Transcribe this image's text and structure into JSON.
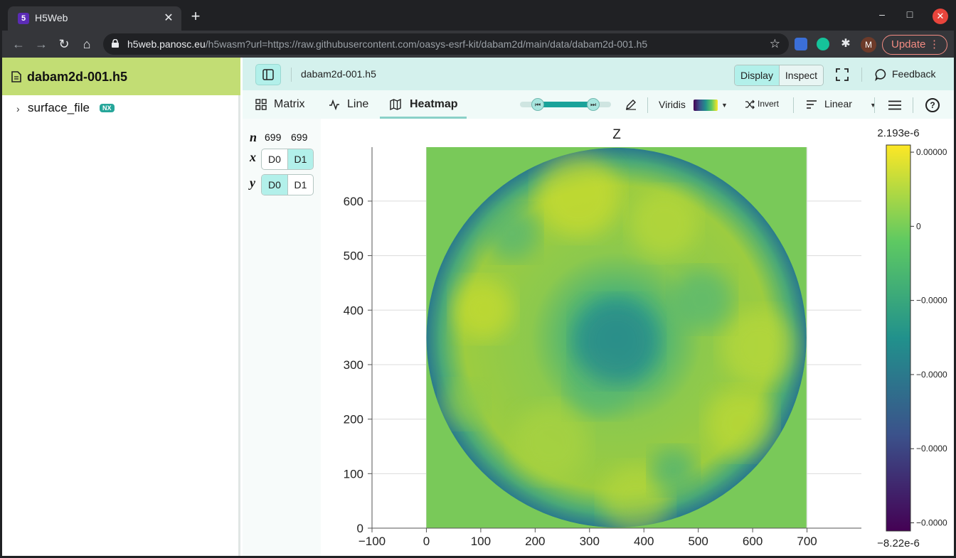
{
  "browser": {
    "tab_title": "H5Web",
    "tab_favicon": "5",
    "url_host": "h5web.panosc.eu",
    "url_path": "/h5wasm?url=https://raw.githubusercontent.com/oasys-esrf-kit/dabam2d/main/data/dabam2d-001.h5",
    "avatar_letter": "M",
    "update_label": "Update"
  },
  "sidebar": {
    "file_name": "dabam2d-001.h5",
    "tree": [
      {
        "label": "surface_file",
        "badge": "NX"
      }
    ]
  },
  "topbar": {
    "breadcrumb": "dabam2d-001.h5",
    "display_label": "Display",
    "inspect_label": "Inspect",
    "feedback_label": "Feedback"
  },
  "vis_tabs": [
    {
      "label": "Matrix",
      "icon": "grid-icon",
      "active": false
    },
    {
      "label": "Line",
      "icon": "line-chart-icon",
      "active": false
    },
    {
      "label": "Heatmap",
      "icon": "map-icon",
      "active": true
    }
  ],
  "toolbar": {
    "colormap": "Viridis",
    "invert_label": "Invert",
    "scale": "Linear"
  },
  "dims": {
    "n_label": "n",
    "n": [
      "699",
      "699"
    ],
    "x_label": "x",
    "y_label": "y",
    "x": [
      "D0",
      "D1"
    ],
    "y": [
      "D0",
      "D1"
    ],
    "x_selected": "D1",
    "y_selected": "D0"
  },
  "chart_data": {
    "type": "heatmap",
    "title": "Z",
    "colormap": "viridis",
    "x_ticks": [
      "−100",
      "0",
      "100",
      "200",
      "300",
      "400",
      "500",
      "600",
      "700"
    ],
    "x_tick_values": [
      -100,
      0,
      100,
      200,
      300,
      400,
      500,
      600,
      700
    ],
    "y_ticks": [
      "0",
      "100",
      "200",
      "300",
      "400",
      "500",
      "600"
    ],
    "y_tick_values": [
      0,
      100,
      200,
      300,
      400,
      500,
      600
    ],
    "xlim": [
      -100,
      800
    ],
    "ylim": [
      0,
      699
    ],
    "grid": true,
    "colorbar": {
      "max_label": "2.193e-6",
      "min_label": "−8.22e-6",
      "tick_labels": [
        "0.00000",
        "0",
        "−0.0000",
        "−0.0000",
        "−0.0000",
        "−0.0000"
      ],
      "tick_values": [
        2e-06,
        0,
        -2e-06,
        -4e-06,
        -6e-06,
        -8e-06
      ],
      "range": [
        -8.22e-06,
        2.193e-06
      ]
    }
  }
}
